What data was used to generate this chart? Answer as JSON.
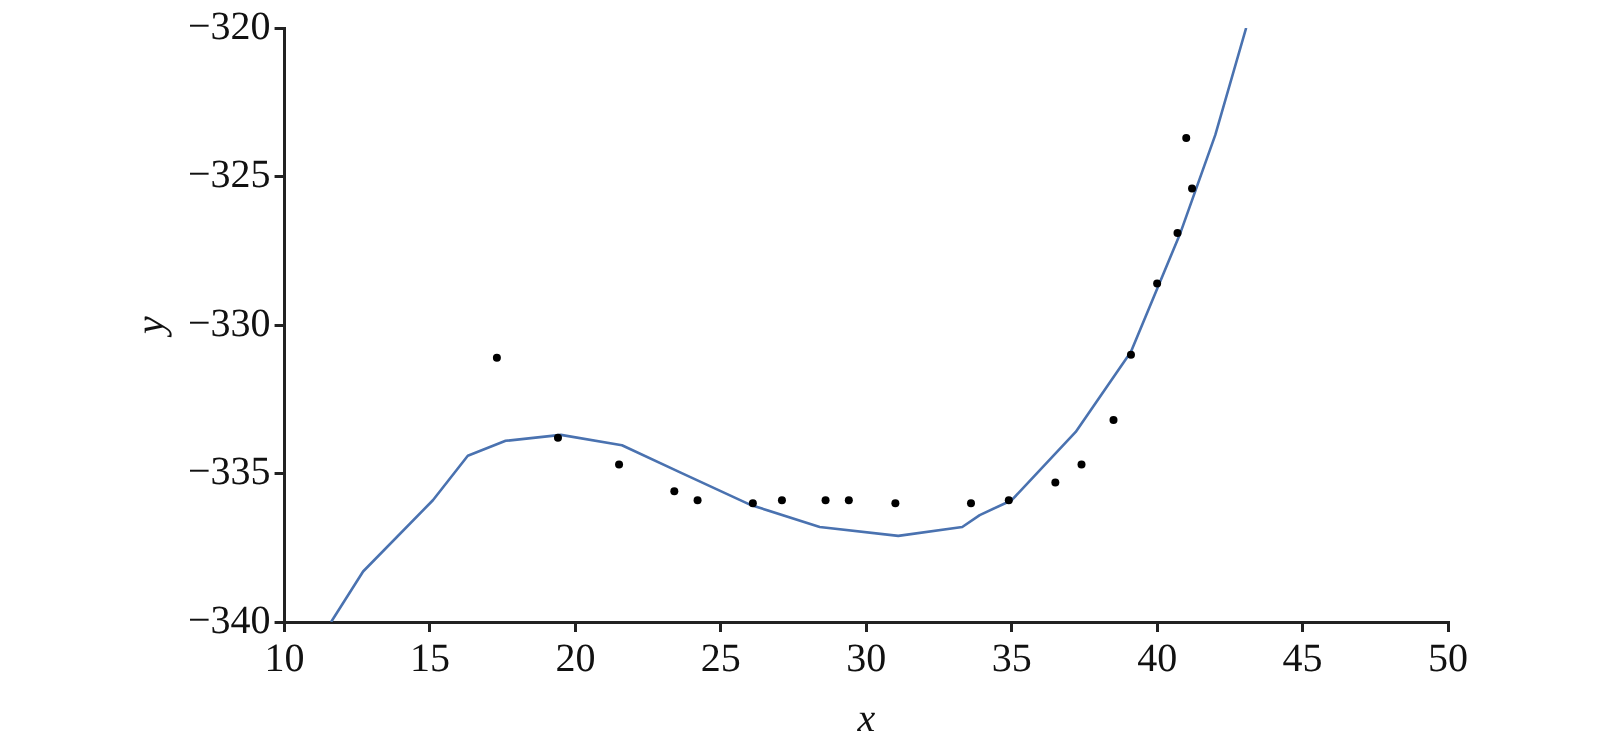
{
  "chart_data": {
    "type": "scatter",
    "xlabel": "x",
    "ylabel": "y",
    "xlim": [
      10,
      50
    ],
    "xticks": [
      10,
      15,
      20,
      25,
      30,
      35,
      40,
      45,
      50
    ],
    "ylim": [
      -340,
      -320
    ],
    "yticks": [
      -340,
      -335,
      -330,
      -325,
      -320
    ],
    "grid": false,
    "series": [
      {
        "marker": "circle",
        "color": "#000000",
        "x": [
          17.3,
          19.4,
          21.5,
          23.4,
          24.2,
          26.1,
          27.1,
          28.6,
          29.4,
          31.0,
          33.6,
          34.9,
          36.5,
          37.4,
          38.5,
          39.1,
          40.0,
          40.7,
          41.0,
          41.2
        ],
        "values": [
          -331.1,
          -333.8,
          -334.7,
          -335.6,
          -335.9,
          -336.0,
          -335.9,
          -335.9,
          -335.9,
          -336.0,
          -336.0,
          -335.9,
          -335.3,
          -334.7,
          -333.2,
          -331.0,
          -328.6,
          -326.9,
          -323.7,
          -325.4
        ]
      },
      {
        "type": "line",
        "marker": "none",
        "color": "#4a72b0",
        "x": [
          11.6,
          12.7,
          15.1,
          16.3,
          17.6,
          19.5,
          21.6,
          23.6,
          26.0,
          28.4,
          31.1,
          33.3,
          33.9,
          35.0,
          37.2,
          39.1,
          40.8,
          42.0,
          43.06
        ],
        "values": [
          -340,
          -338.3,
          -335.9,
          -334.4,
          -333.9,
          -333.7,
          -334.05,
          -334.96,
          -336.05,
          -336.8,
          -337.1,
          -336.8,
          -336.4,
          -335.9,
          -333.6,
          -330.9,
          -326.9,
          -323.6,
          -320
        ]
      }
    ]
  }
}
